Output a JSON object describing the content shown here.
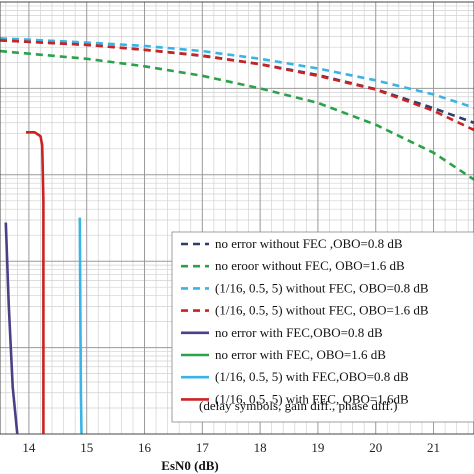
{
  "chart_data": {
    "type": "line",
    "xlabel": "EsN0 (dB)",
    "xlim": [
      13.5,
      21.7
    ],
    "x_ticks": [
      14,
      15,
      16,
      17,
      18,
      19,
      20,
      21
    ],
    "y_scale": "log",
    "ylim": [
      1e-07,
      0.01
    ],
    "grid": true,
    "legend": {
      "placement": "lower-right",
      "note": "(delay symbols, gain diff., phase diff.)"
    },
    "series": [
      {
        "name": "no error without FEC ,OBO=0.8 dB",
        "color": "#2f3c6e",
        "dash": "dashed",
        "x": [
          13.5,
          15,
          16,
          17,
          18,
          19,
          20,
          21,
          21.7
        ],
        "y": [
          0.0036,
          0.0032,
          0.0028,
          0.00238,
          0.00191,
          0.00143,
          0.00098,
          0.00059,
          0.0004
        ]
      },
      {
        "name": "no eroor without FEC, OBO=1.6 dB",
        "color": "#2aa24a",
        "dash": "dashed",
        "x": [
          13.5,
          15,
          16,
          17,
          18,
          19,
          20,
          21,
          21.7
        ],
        "y": [
          0.0027,
          0.0022,
          0.0018,
          0.0014,
          0.001,
          0.00068,
          0.00038,
          0.00018,
          8.8e-05
        ]
      },
      {
        "name": "(1/16, 0.5, 5) without FEC, OBO=0.8 dB",
        "color": "#3ab4e6",
        "dash": "dashed",
        "x": [
          13.5,
          15,
          16,
          17,
          18,
          19,
          20,
          21,
          21.7
        ],
        "y": [
          0.0038,
          0.0034,
          0.0031,
          0.0027,
          0.0022,
          0.0017,
          0.00124,
          0.00085,
          0.0006
        ]
      },
      {
        "name": "(1/16, 0.5, 5) without FEC, OBO=1.6 dB",
        "color": "#cc2222",
        "dash": "dashed",
        "x": [
          13.5,
          15,
          16,
          17,
          18,
          19,
          20,
          21,
          21.7
        ],
        "y": [
          0.0036,
          0.0032,
          0.0028,
          0.0024,
          0.0019,
          0.0014,
          0.00097,
          0.00055,
          0.00033
        ]
      },
      {
        "name": "no error with FEC,OBO=0.8 dB",
        "color": "#4b3f86",
        "dash": "solid",
        "x": [
          13.6,
          13.65,
          13.72,
          13.8
        ],
        "y": [
          2.8e-05,
          3.2e-06,
          3.5e-07,
          1e-07
        ]
      },
      {
        "name": "no error with FEC, OBO=1.6 dB",
        "color": "#2aa24a",
        "dash": "solid",
        "x": [],
        "y": []
      },
      {
        "name": "(1/16, 0.5, 5) with FEC,OBO=0.8 dB",
        "color": "#3ab4e6",
        "dash": "solid",
        "x": [
          14.88,
          14.89,
          14.9,
          14.91
        ],
        "y": [
          3.2e-05,
          3e-06,
          3e-07,
          1e-07
        ]
      },
      {
        "name": "(1/16, 0.5, 5) with FEC, OBO=1.6dB",
        "color": "#cc2222",
        "dash": "solid",
        "x": [
          13.95,
          14.1,
          14.2,
          14.23,
          14.25,
          14.25
        ],
        "y": [
          0.00031,
          0.00031,
          0.00028,
          0.00022,
          5e-05,
          1e-07
        ]
      }
    ]
  }
}
